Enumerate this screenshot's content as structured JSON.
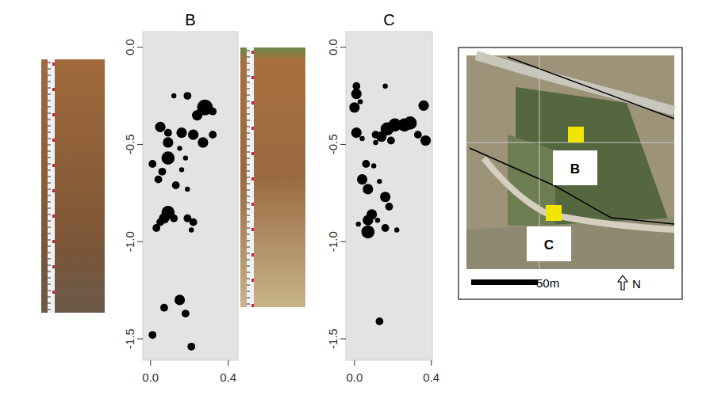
{
  "chart_data": [
    {
      "type": "scatter",
      "title": "B",
      "color": "#000000",
      "marker": "circle",
      "xlim": [
        -0.04,
        0.45
      ],
      "ylim": [
        -1.61,
        0.08
      ],
      "xticks": [
        {
          "value": 0,
          "label": "0.0"
        },
        0.4
      ],
      "yticks": [
        {
          "value": 0,
          "label": "0.0"
        },
        -0.5,
        {
          "value": -1,
          "label": "-1.0"
        },
        -1.5
      ],
      "x": [
        0.28,
        0.19,
        0.24,
        0.32,
        0.12,
        0.05,
        0.09,
        0.09,
        0.09,
        0.01,
        0.16,
        0.22,
        0.27,
        0.32,
        0.15,
        0.18,
        0.16,
        0.06,
        0.04,
        0.13,
        0.19,
        0.09,
        0.07,
        0.05,
        0.03,
        0.12,
        0.19,
        0.22,
        0.21,
        0.15,
        0.07,
        0.18,
        0.01,
        0.21
      ],
      "values": [
        -0.31,
        -0.25,
        -0.35,
        -0.33,
        -0.25,
        -0.41,
        -0.44,
        -0.49,
        -0.57,
        -0.6,
        -0.44,
        -0.45,
        -0.49,
        -0.45,
        -0.52,
        -0.57,
        -0.63,
        -0.64,
        -0.68,
        -0.71,
        -0.73,
        -0.85,
        -0.88,
        -0.9,
        -0.93,
        -0.88,
        -0.88,
        -0.9,
        -0.94,
        -1.3,
        -1.34,
        -1.37,
        -1.48,
        -1.54
      ],
      "sizes": [
        5,
        2,
        3,
        2,
        1,
        3,
        2,
        3,
        4,
        2,
        3,
        3,
        3,
        2,
        1,
        1,
        1,
        2,
        2,
        2,
        1,
        4,
        3,
        2,
        2,
        2,
        2,
        2,
        1,
        3,
        2,
        2,
        2,
        2
      ]
    },
    {
      "type": "scatter",
      "title": "C",
      "color": "#000000",
      "marker": "circle",
      "xlim": [
        -0.045,
        0.405
      ],
      "ylim": [
        -1.61,
        0.08
      ],
      "xticks": [
        {
          "value": 0,
          "label": "0.0"
        },
        0.4
      ],
      "yticks": [
        {
          "value": 0,
          "label": "0.0"
        },
        -0.5,
        {
          "value": -1,
          "label": "-1.0"
        },
        -1.5
      ],
      "x": [
        0.01,
        0.01,
        0.0,
        0.03,
        0.01,
        0.04,
        0.11,
        0.17,
        0.21,
        0.26,
        0.29,
        0.36,
        0.33,
        0.37,
        0.16,
        0.14,
        0.19,
        0.11,
        0.06,
        0.1,
        0.04,
        0.07,
        0.13,
        0.16,
        0.18,
        0.09,
        0.07,
        0.12,
        0.16,
        0.07,
        0.22,
        0.02,
        0.13
      ],
      "values": [
        -0.2,
        -0.24,
        -0.31,
        -0.28,
        -0.44,
        -0.47,
        -0.45,
        -0.42,
        -0.4,
        -0.4,
        -0.39,
        -0.3,
        -0.45,
        -0.48,
        -0.2,
        -0.46,
        -0.48,
        -0.49,
        -0.6,
        -0.61,
        -0.68,
        -0.73,
        -0.69,
        -0.77,
        -0.82,
        -0.86,
        -0.89,
        -0.89,
        -0.93,
        -0.95,
        -0.94,
        -0.91,
        -1.41
      ],
      "sizes": [
        2,
        3,
        3,
        1,
        3,
        1,
        2,
        4,
        4,
        4,
        4,
        3,
        2,
        3,
        1,
        3,
        2,
        1,
        2,
        1,
        3,
        3,
        1,
        3,
        2,
        3,
        3,
        1,
        2,
        4,
        1,
        1,
        2
      ]
    }
  ],
  "map": {
    "labels": [
      "B",
      "C"
    ],
    "scale_label": "50m",
    "north_label": "N"
  }
}
